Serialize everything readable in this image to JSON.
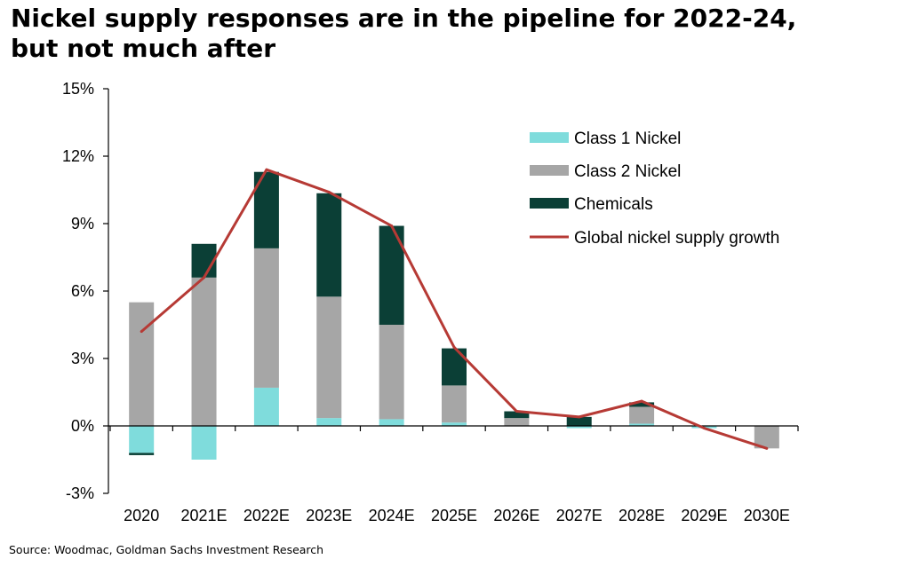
{
  "title_line1": "Nickel supply responses are in the pipeline for 2022-24,",
  "title_line2": "but not much after",
  "source": "Source: Woodmac, Goldman Sachs Investment Research",
  "colors": {
    "class1": "#7fdcdc",
    "class2": "#a6a6a6",
    "chemicals": "#0b3f36",
    "line": "#b63a35"
  },
  "chart_data": {
    "type": "bar",
    "stacked": true,
    "categories": [
      "2020",
      "2021E",
      "2022E",
      "2023E",
      "2024E",
      "2025E",
      "2026E",
      "2027E",
      "2028E",
      "2029E",
      "2030E"
    ],
    "yticks": [
      "15%",
      "12%",
      "9%",
      "6%",
      "3%",
      "0%",
      "-3%"
    ],
    "ylim": [
      -3,
      15
    ],
    "series": [
      {
        "name": "Class 1 Nickel",
        "values": [
          -1.2,
          -1.5,
          1.7,
          0.35,
          0.3,
          0.15,
          0.0,
          -0.1,
          0.1,
          -0.1,
          0.0
        ]
      },
      {
        "name": "Class 2 Nickel",
        "values": [
          5.5,
          6.6,
          6.2,
          5.4,
          4.2,
          1.65,
          0.35,
          0.0,
          0.75,
          0.0,
          -1.0
        ]
      },
      {
        "name": "Chemicals",
        "values": [
          -0.1,
          1.5,
          3.4,
          4.6,
          4.4,
          1.65,
          0.3,
          0.4,
          0.2,
          0.0,
          0.0
        ]
      }
    ],
    "line": {
      "name": "Global nickel supply growth",
      "values": [
        4.2,
        6.6,
        11.4,
        10.4,
        8.9,
        3.5,
        0.65,
        0.4,
        1.1,
        -0.1,
        -1.0
      ]
    },
    "legend": [
      "Class 1 Nickel",
      "Class 2 Nickel",
      "Chemicals",
      "Global nickel supply growth"
    ],
    "legend_position": "top-right",
    "grid": false
  }
}
